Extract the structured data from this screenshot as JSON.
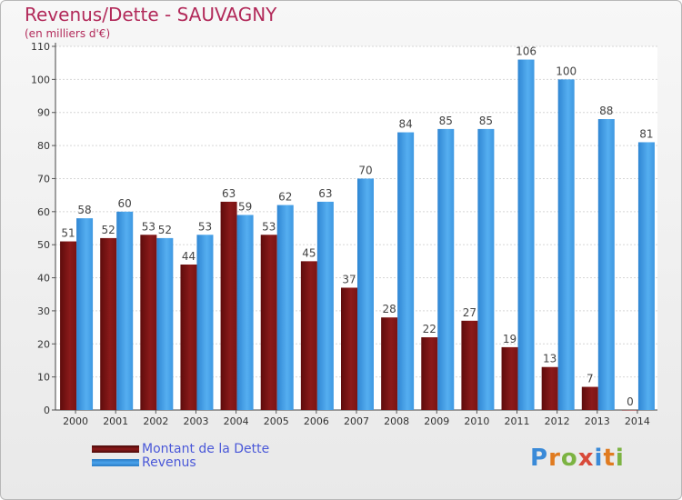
{
  "title": "Revenus/Dette - SAUVAGNY",
  "subtitle": "(en milliers d'€)",
  "brand": {
    "logo_text": "Proxiti"
  },
  "colors": {
    "dette": "#8b1a1a",
    "revenus": "#4aa3ec",
    "title": "#b22a5a",
    "legend_text": "#4a58d8"
  },
  "chart_data": {
    "type": "bar",
    "title": "Revenus/Dette - SAUVAGNY",
    "subtitle": "(en milliers d'€)",
    "categories": [
      "2000",
      "2001",
      "2002",
      "2003",
      "2004",
      "2005",
      "2006",
      "2007",
      "2008",
      "2009",
      "2010",
      "2011",
      "2012",
      "2013",
      "2014"
    ],
    "series": [
      {
        "name": "Montant de la Dette",
        "color": "#8b1a1a",
        "values": [
          51,
          52,
          53,
          44,
          63,
          53,
          45,
          37,
          28,
          22,
          27,
          19,
          13,
          7,
          0
        ]
      },
      {
        "name": "Revenus",
        "color": "#4aa3ec",
        "values": [
          58,
          60,
          52,
          53,
          59,
          62,
          63,
          70,
          84,
          85,
          85,
          106,
          100,
          88,
          81
        ]
      }
    ],
    "ylim": [
      0,
      110
    ],
    "yticks": [
      0,
      10,
      20,
      30,
      40,
      50,
      60,
      70,
      80,
      90,
      100,
      110
    ],
    "grid": true,
    "legend": "bottom-left"
  }
}
